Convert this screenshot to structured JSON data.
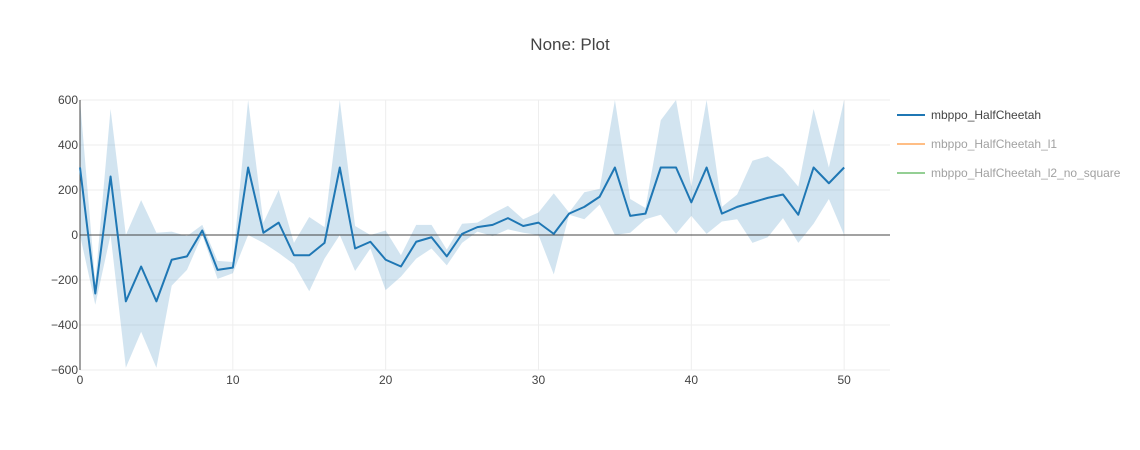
{
  "chart_data": {
    "type": "line",
    "title": "None: Plot",
    "xlabel": "",
    "ylabel": "",
    "xlim": [
      0,
      53
    ],
    "ylim": [
      -600,
      600
    ],
    "x_ticks": [
      0,
      10,
      20,
      30,
      40,
      50
    ],
    "y_ticks": [
      -600,
      -400,
      -200,
      0,
      200,
      400,
      600
    ],
    "y_tick_labels": [
      "−600",
      "−400",
      "−200",
      "0",
      "200",
      "400",
      "600"
    ],
    "grid": true,
    "legend_position": "right",
    "x": [
      0,
      1,
      2,
      3,
      4,
      5,
      6,
      7,
      8,
      9,
      10,
      11,
      12,
      13,
      14,
      15,
      16,
      17,
      18,
      19,
      20,
      21,
      22,
      23,
      24,
      25,
      26,
      27,
      28,
      29,
      30,
      31,
      32,
      33,
      34,
      35,
      36,
      37,
      38,
      39,
      40,
      41,
      42,
      43,
      44,
      45,
      46,
      47,
      48,
      49,
      50
    ],
    "series": [
      {
        "name": "mbppo_HalfCheetah",
        "color": "#1f77b4",
        "band_color": "rgba(31,119,180,0.2)",
        "visible": true,
        "values": [
          300,
          -260,
          260,
          -295,
          -140,
          -295,
          -110,
          -95,
          20,
          -155,
          -145,
          300,
          10,
          55,
          -90,
          -90,
          -35,
          300,
          -60,
          -30,
          -110,
          -140,
          -30,
          -10,
          -95,
          5,
          35,
          45,
          75,
          40,
          55,
          5,
          95,
          125,
          170,
          300,
          85,
          95,
          300,
          300,
          145,
          300,
          95,
          125,
          145,
          165,
          180,
          90,
          300,
          230,
          300
        ],
        "upper": [
          600,
          -210,
          560,
          0,
          155,
          10,
          15,
          -5,
          45,
          -115,
          -120,
          600,
          55,
          200,
          -35,
          80,
          35,
          600,
          40,
          0,
          20,
          -90,
          45,
          45,
          -65,
          50,
          55,
          95,
          130,
          70,
          100,
          185,
          100,
          190,
          205,
          600,
          160,
          120,
          510,
          600,
          215,
          600,
          125,
          180,
          330,
          350,
          295,
          215,
          560,
          300,
          600
        ],
        "lower": [
          0,
          -310,
          0,
          -590,
          -430,
          -590,
          -225,
          -155,
          0,
          -195,
          -170,
          0,
          -35,
          -80,
          -130,
          -250,
          -105,
          0,
          -160,
          -60,
          -245,
          -185,
          -105,
          -60,
          -135,
          -35,
          15,
          -5,
          25,
          10,
          0,
          -175,
          90,
          70,
          135,
          0,
          10,
          70,
          90,
          5,
          85,
          5,
          60,
          70,
          -35,
          -10,
          75,
          -35,
          50,
          160,
          0
        ]
      },
      {
        "name": "mbppo_HalfCheetah_l1",
        "color": "#ff7f0e",
        "visible": false
      },
      {
        "name": "mbppo_HalfCheetah_l2_no_square",
        "color": "#2ca02c",
        "visible": false
      }
    ]
  },
  "colors": {
    "grid": "#eeeeee",
    "axis": "#444444",
    "zero_line": "#444444",
    "text": "#444444",
    "legend_hidden_text": "#aaaaaa"
  }
}
